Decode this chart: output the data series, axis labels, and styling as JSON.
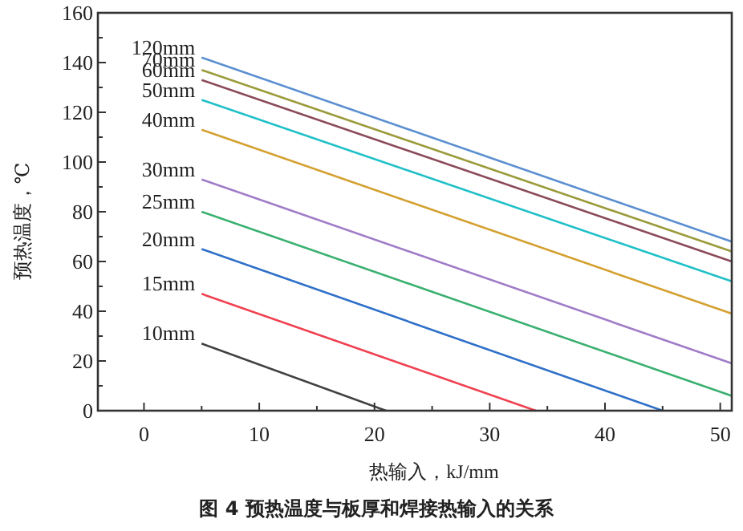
{
  "chart_data": {
    "type": "line",
    "title": "图 4 预热温度与板厚和焊接热输入的关系",
    "xlabel": "热输入，kJ/mm",
    "ylabel": "预热温度，℃",
    "xlim": [
      -4,
      51
    ],
    "ylim": [
      0,
      160
    ],
    "xticks": [
      0,
      {
        "value": 5,
        "label": null
      },
      10,
      {
        "value": 15,
        "label": null
      },
      20,
      {
        "value": 25,
        "label": null
      },
      30,
      {
        "value": 35,
        "label": null
      },
      40,
      {
        "value": 45,
        "label": null
      },
      50
    ],
    "yticks": [
      0,
      {
        "value": 10,
        "label": null
      },
      20,
      {
        "value": 30,
        "label": null
      },
      40,
      {
        "value": 50,
        "label": null
      },
      60,
      {
        "value": 70,
        "label": null
      },
      80,
      {
        "value": 90,
        "label": null
      },
      100,
      {
        "value": 110,
        "label": null
      },
      120,
      {
        "value": 130,
        "label": null
      },
      140,
      {
        "value": 150,
        "label": null
      },
      160
    ],
    "grid": false,
    "legend": false,
    "series": [
      {
        "name": "120mm",
        "color": "#5b8fd0",
        "x": [
          5,
          51
        ],
        "values": [
          142,
          68
        ]
      },
      {
        "name": "70mm",
        "color": "#9a9a3a",
        "x": [
          5,
          51
        ],
        "values": [
          137,
          64
        ]
      },
      {
        "name": "60mm",
        "color": "#8b4a5a",
        "x": [
          5,
          51
        ],
        "values": [
          133,
          60
        ]
      },
      {
        "name": "50mm",
        "color": "#20c0c8",
        "x": [
          5,
          51
        ],
        "values": [
          125,
          52
        ]
      },
      {
        "name": "40mm",
        "color": "#d4a030",
        "x": [
          5,
          51
        ],
        "values": [
          113,
          39
        ]
      },
      {
        "name": "30mm",
        "color": "#a07cc8",
        "x": [
          5,
          51
        ],
        "values": [
          93,
          19
        ]
      },
      {
        "name": "25mm",
        "color": "#3ab070",
        "x": [
          5,
          51
        ],
        "values": [
          80,
          6
        ]
      },
      {
        "name": "20mm",
        "color": "#2e6fc8",
        "x": [
          5,
          45
        ],
        "values": [
          65,
          0
        ]
      },
      {
        "name": "15mm",
        "color": "#f04050",
        "x": [
          5,
          34
        ],
        "values": [
          47,
          0
        ]
      },
      {
        "name": "10mm",
        "color": "#404040",
        "x": [
          5,
          21
        ],
        "values": [
          27,
          0
        ]
      }
    ]
  }
}
